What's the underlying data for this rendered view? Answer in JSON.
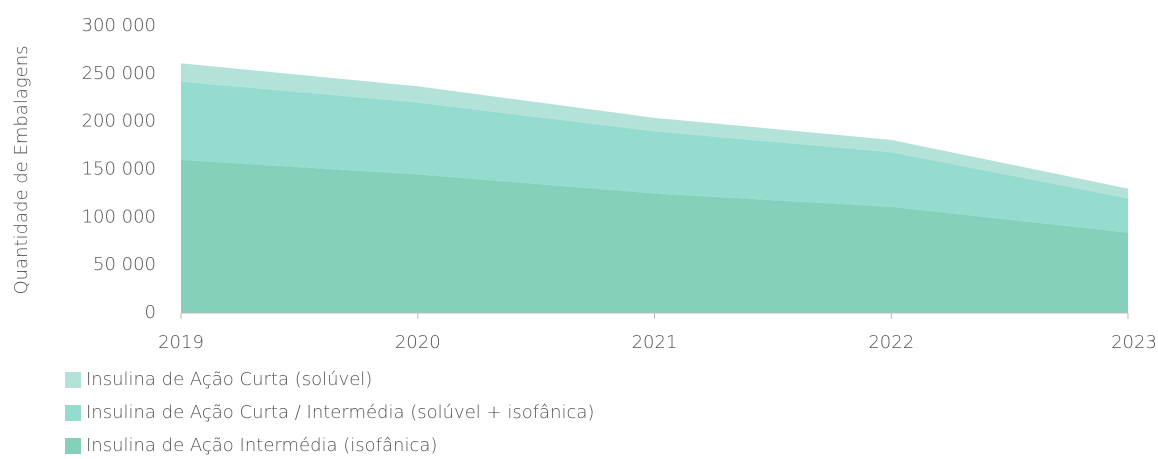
{
  "chart_data": {
    "type": "area",
    "stacked": true,
    "y_label": "Quantidade de Embalagens",
    "categories": [
      "2019",
      "2020",
      "2021",
      "2022",
      "2023"
    ],
    "series": [
      {
        "name": "Insulina de Ação Curta (solúvel)",
        "color": "#b3e3d8",
        "values": [
          19000,
          17000,
          14000,
          13000,
          10000
        ]
      },
      {
        "name": "Insulina de Ação Curta / Intermédia (solúvel + isofânica)",
        "color": "#94dccd",
        "values": [
          82000,
          75000,
          65000,
          57000,
          36000
        ]
      },
      {
        "name": "Insulina de Ação Intermédia (isofânica)",
        "color": "#84d0bb",
        "values": [
          160000,
          145000,
          125000,
          111000,
          84000
        ]
      }
    ],
    "ylim": [
      0,
      300000
    ],
    "yticks": [
      0,
      {
        "value": 50000,
        "label": "50 000"
      },
      {
        "value": 100000,
        "label": "100 000"
      },
      {
        "value": 150000,
        "label": "150 000"
      },
      {
        "value": 200000,
        "label": "200 000"
      },
      {
        "value": 250000,
        "label": "250 000"
      },
      {
        "value": 300000,
        "label": "300 000"
      }
    ]
  }
}
